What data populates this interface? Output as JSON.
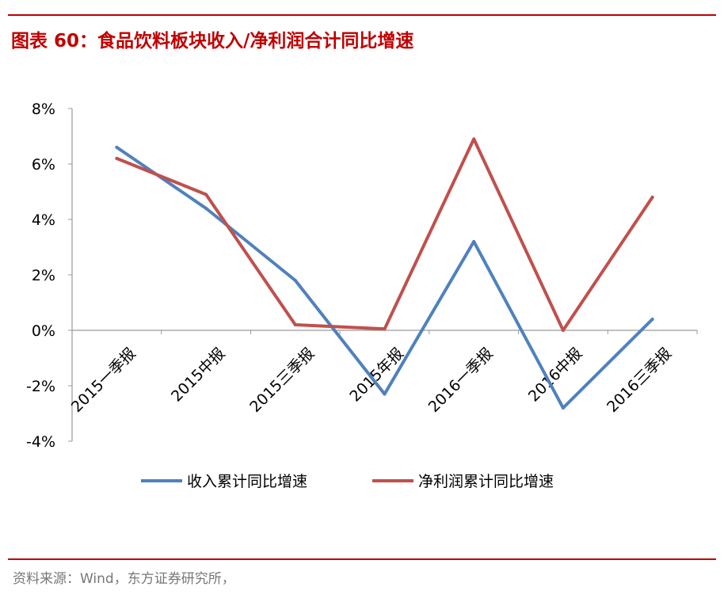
{
  "header": {
    "title": "图表 60：食品饮料板块收入/净利润合计同比增速"
  },
  "source": {
    "text": "资料来源：Wind，东方证券研究所，"
  },
  "colors": {
    "accent": "#c00000",
    "series_1": "#4f81bd",
    "series_2": "#c0504d"
  },
  "chart_data": {
    "type": "line",
    "title": "",
    "xlabel": "",
    "ylabel": "",
    "categories": [
      "2015一季报",
      "2015中报",
      "2015三季报",
      "2015年报",
      "2016一季报",
      "2016中报",
      "2016三季报"
    ],
    "y_ticks": [
      "8%",
      "6%",
      "4%",
      "2%",
      "0%",
      "-2%",
      "-4%"
    ],
    "ylim": [
      -4,
      8
    ],
    "grid": false,
    "legend_position": "bottom",
    "series": [
      {
        "name": "收入累计同比增速",
        "color": "#4f81bd",
        "values": [
          6.6,
          4.4,
          1.8,
          -2.3,
          3.2,
          -2.8,
          0.4
        ]
      },
      {
        "name": "净利润累计同比增速",
        "color": "#c0504d",
        "values": [
          6.2,
          4.9,
          0.2,
          0.05,
          6.9,
          0.0,
          4.8
        ]
      }
    ]
  }
}
